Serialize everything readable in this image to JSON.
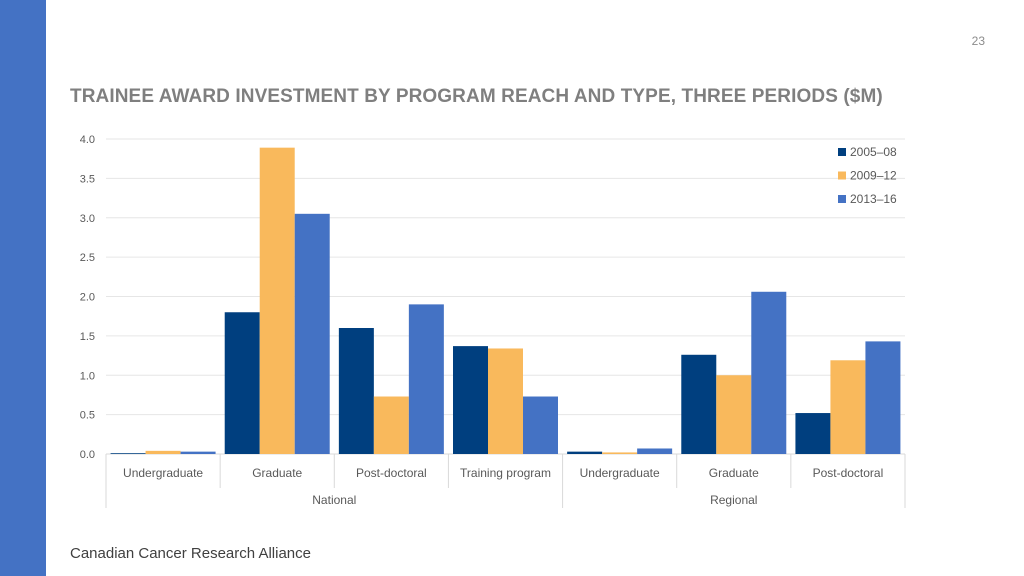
{
  "page_number": "23",
  "footer": "Canadian Cancer Research Alliance",
  "colors": {
    "accent_bar": "#4472C4",
    "series": [
      "#003F7F",
      "#F9B95C",
      "#4472C4"
    ]
  },
  "chart_data": {
    "type": "bar",
    "title": "TRAINEE AWARD INVESTMENT BY PROGRAM REACH AND TYPE, THREE PERIODS ($M)",
    "xlabel": "",
    "ylabel": "",
    "ylim": [
      0,
      4.0
    ],
    "yticks": [
      "0.0",
      "0.5",
      "1.0",
      "1.5",
      "2.0",
      "2.5",
      "3.0",
      "3.5",
      "4.0"
    ],
    "grid": true,
    "legend_position": "top-right",
    "groups": [
      {
        "label": "National",
        "categories": [
          "Undergraduate",
          "Graduate",
          "Post-doctoral",
          "Training program"
        ]
      },
      {
        "label": "Regional",
        "categories": [
          "Undergraduate",
          "Graduate",
          "Post-doctoral"
        ]
      }
    ],
    "categories": [
      "Undergraduate",
      "Graduate",
      "Post-doctoral",
      "Training program",
      "Undergraduate",
      "Graduate",
      "Post-doctoral"
    ],
    "series": [
      {
        "name": "2005–08",
        "color": "#003F7F",
        "values": [
          0.01,
          1.8,
          1.6,
          1.37,
          0.03,
          1.26,
          0.52
        ]
      },
      {
        "name": "2009–12",
        "color": "#F9B95C",
        "values": [
          0.04,
          3.89,
          0.73,
          1.34,
          0.02,
          1.0,
          1.19
        ]
      },
      {
        "name": "2013–16",
        "color": "#4472C4",
        "values": [
          0.03,
          3.05,
          1.9,
          0.73,
          0.07,
          2.06,
          1.43
        ]
      }
    ]
  }
}
